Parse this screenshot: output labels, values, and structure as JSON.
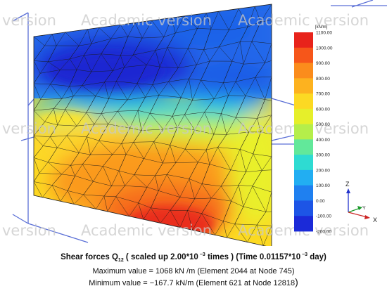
{
  "watermark": {
    "text": "Academic version",
    "fragment": "version"
  },
  "legend": {
    "unit": "[kN/m]",
    "ticks": [
      "1100.00",
      "1000.00",
      "900.00",
      "800.00",
      "700.00",
      "600.00",
      "500.00",
      "400.00",
      "300.00",
      "200.00",
      "100.00",
      "0.00",
      "-100.00",
      "-200.00"
    ],
    "colors": [
      "#e8231b",
      "#f6561a",
      "#fb8c1c",
      "#fdb21f",
      "#fcd923",
      "#e6ef2a",
      "#b5ee4a",
      "#62e89a",
      "#2edbd2",
      "#22aef2",
      "#1f80f0",
      "#1d55e6",
      "#1b2ad8"
    ]
  },
  "axes": {
    "z": "Z",
    "y": "Y",
    "x": "X"
  },
  "caption": {
    "title_main": "Shear forces Q",
    "title_sub": "12",
    "title_scale": " ( scaled up 2.00*10",
    "title_exp1": " −3",
    "title_times": " times ) (Time 0.01157*10",
    "title_exp2": " −3",
    "title_day": " day)",
    "max_line": "Maximum value = 1068 kN /m (Element 2044 at Node 745)",
    "min_line": "Minimum value = −167.7 kN/m (Element 621 at Node 12818",
    "min_close": ")"
  }
}
